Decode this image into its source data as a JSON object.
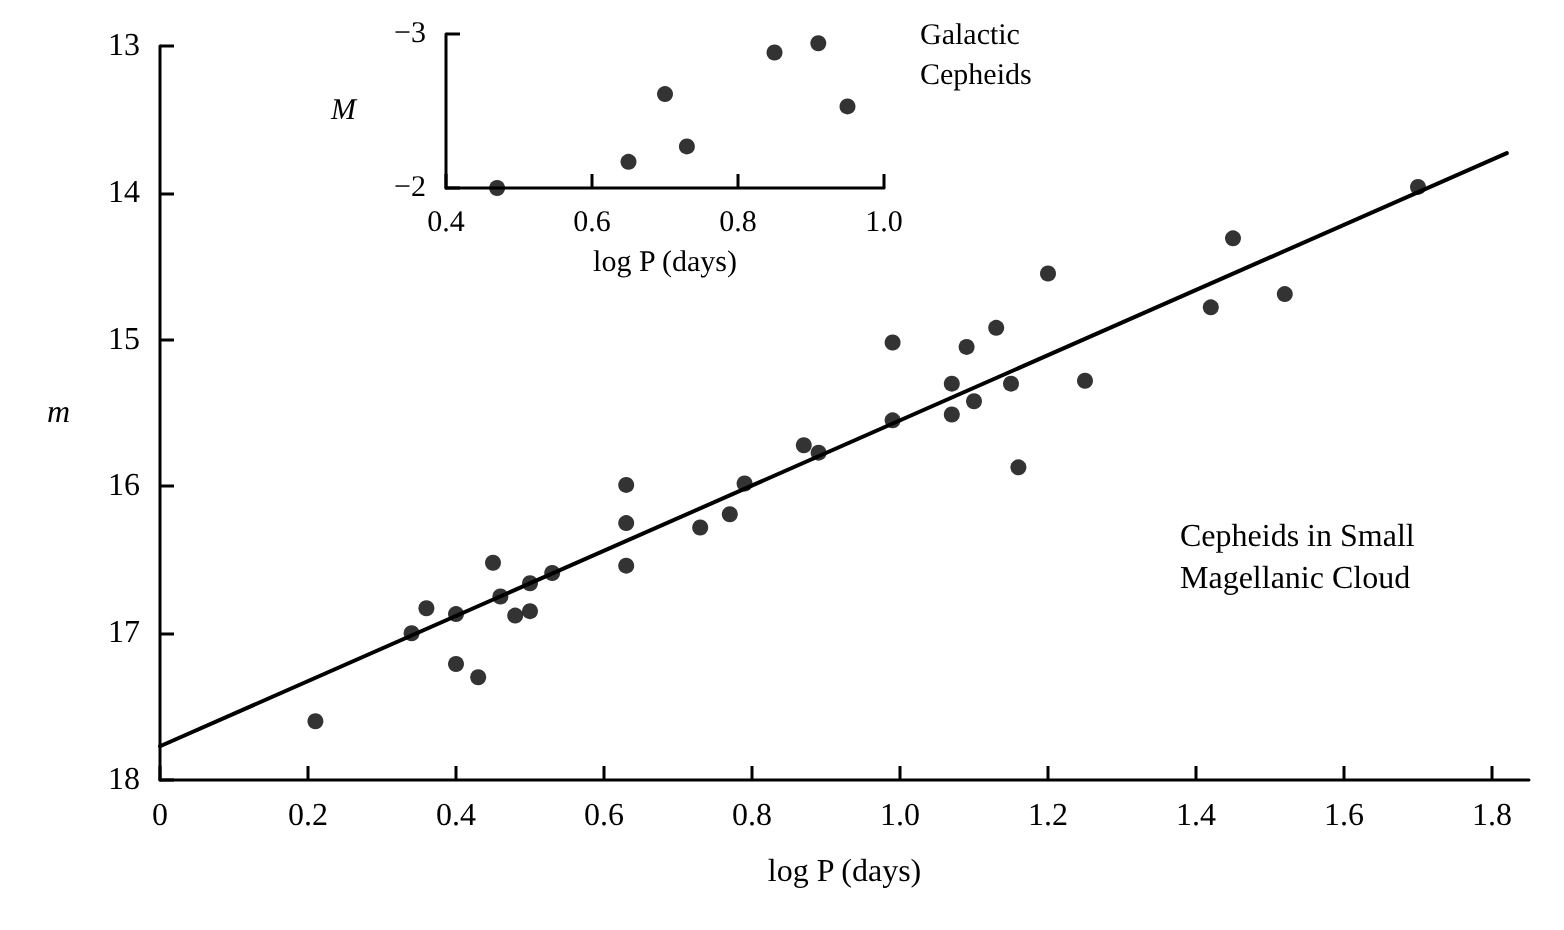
{
  "chart_data": [
    {
      "type": "scatter",
      "xlabel": "log P (days)",
      "ylabel": "m",
      "xlim": [
        0,
        1.85
      ],
      "ylim": [
        18,
        13
      ],
      "xticks": [
        0,
        0.2,
        0.4,
        0.6,
        0.8,
        {
          "value": 1,
          "label": "1.0"
        },
        1.2,
        1.4,
        1.6,
        1.8
      ],
      "yticks": [
        13,
        14,
        15,
        16,
        17,
        18
      ],
      "grid": false,
      "marker": "circle",
      "annotations": [
        "Cepheids in Small Magellanic Cloud"
      ],
      "series": [
        {
          "color": "#000000",
          "x": [
            0.21,
            0.34,
            0.36,
            0.4,
            0.4,
            0.43,
            0.45,
            0.46,
            0.48,
            0.5,
            0.5,
            0.53,
            0.63,
            0.63,
            0.63,
            0.73,
            0.77,
            0.79,
            0.87,
            0.89,
            0.99,
            0.99,
            1.07,
            1.07,
            1.09,
            1.1,
            1.13,
            1.15,
            1.16,
            1.2,
            1.25,
            1.42,
            1.45,
            1.52,
            1.7
          ],
          "values": [
            17.6,
            17.0,
            16.83,
            16.87,
            17.21,
            17.3,
            16.52,
            16.75,
            16.88,
            16.66,
            16.85,
            16.59,
            15.99,
            16.25,
            16.54,
            16.28,
            16.19,
            15.98,
            15.72,
            15.77,
            15.55,
            15.02,
            15.3,
            15.51,
            15.05,
            15.42,
            14.92,
            15.3,
            15.87,
            14.55,
            15.28,
            14.78,
            14.31,
            14.69,
            13.96
          ]
        },
        {
          "type": "line",
          "color": "#000000",
          "marker": "none",
          "line_style": "solid",
          "x": [
            0,
            1.82
          ],
          "values": [
            17.77,
            13.73
          ]
        }
      ]
    },
    {
      "type": "scatter",
      "xlabel": "log P (days)",
      "ylabel": "M",
      "xlim": [
        0.4,
        1.0
      ],
      "ylim": [
        -2,
        -3
      ],
      "xticks": [
        0.4,
        0.6,
        0.8,
        {
          "value": 1,
          "label": "1.0"
        }
      ],
      "yticks": [
        {
          "value": -3,
          "label": "−3"
        },
        {
          "value": -2,
          "label": "−2"
        }
      ],
      "grid": false,
      "marker": "circle",
      "annotations": [
        "Galactic Cepheids"
      ],
      "series": [
        {
          "color": "#000000",
          "x": [
            0.47,
            0.65,
            0.7,
            0.73,
            0.85,
            0.91,
            0.95
          ],
          "values": [
            -2.0,
            -2.17,
            -2.61,
            -2.27,
            -2.88,
            -2.94,
            -2.53
          ]
        }
      ]
    }
  ]
}
